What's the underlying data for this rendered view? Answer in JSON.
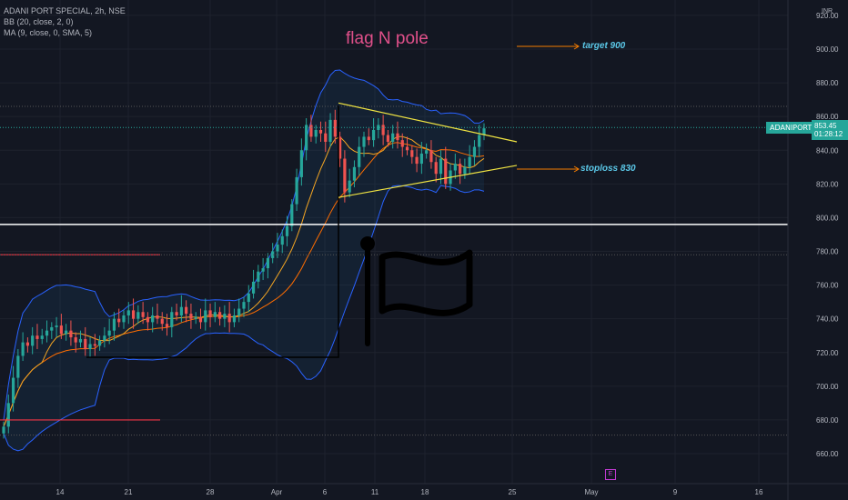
{
  "legend": {
    "symbol": "ADANI PORT SPECIAL, 2h, NSE",
    "bb": "BB (20, close, 2, 0)",
    "ma": "MA (9, close, 0, SMA, 5)"
  },
  "currency": "INR",
  "ticker_badge": "ADANIPORTS",
  "price_badge": {
    "price": "853.45",
    "countdown": "01:28:12"
  },
  "annotations": {
    "title": "flag N pole",
    "target": "target 900",
    "stoploss": "stoploss 830"
  },
  "earnings_badge": "E",
  "colors": {
    "background": "#131722",
    "up": "#26a69a",
    "down": "#ef5350",
    "bb_band": "#2962ff",
    "ma": "#f5a623",
    "trendline": "#f0e442",
    "support": "#ffffff",
    "levels": "#f23645",
    "arrow": "#f57c00"
  },
  "chart_data": {
    "type": "candlestick",
    "y_axis_labels": [
      "920.00",
      "900.00",
      "880.00",
      "860.00",
      "840.00",
      "820.00",
      "800.00",
      "780.00",
      "760.00",
      "740.00",
      "720.00",
      "700.00",
      "680.00",
      "660.00"
    ],
    "ylim": [
      650,
      925
    ],
    "x_axis_labels": [
      "14",
      "21",
      "28",
      "Apr",
      "6",
      "11",
      "18",
      "25",
      "May",
      "9",
      "16"
    ],
    "horizontal_levels": [
      {
        "value": 796,
        "color": "#ffffff",
        "label": ""
      },
      {
        "value": 778,
        "color": "#f23645",
        "label": ""
      },
      {
        "value": 680,
        "color": "#f23645",
        "label": ""
      }
    ],
    "trendlines": [
      {
        "from": [
          0.0,
          868
        ],
        "to": [
          1.0,
          845
        ],
        "segment": "upper"
      },
      {
        "from": [
          0.0,
          812
        ],
        "to": [
          1.0,
          831
        ],
        "segment": "lower"
      }
    ],
    "target_value": 900,
    "stoploss_value": 830,
    "last_price": 853.45,
    "closes": [
      676,
      690,
      705,
      718,
      726,
      724,
      730,
      728,
      730,
      733,
      735,
      736,
      731,
      733,
      729,
      726,
      728,
      722,
      725,
      724,
      727,
      730,
      733,
      740,
      738,
      742,
      745,
      740,
      744,
      741,
      738,
      742,
      740,
      737,
      735,
      744,
      742,
      747,
      743,
      740,
      741,
      738,
      745,
      741,
      744,
      740,
      743,
      738,
      742,
      746,
      750,
      755,
      762,
      768,
      770,
      776,
      780,
      784,
      789,
      795,
      808,
      824,
      840,
      855,
      848,
      852,
      850,
      845,
      858,
      848,
      835,
      815,
      822,
      830,
      842,
      848,
      846,
      852,
      855,
      849,
      845,
      850,
      846,
      842,
      840,
      836,
      832,
      838,
      840,
      833,
      826,
      835,
      820,
      828,
      832,
      826,
      830,
      836,
      842,
      849,
      853
    ]
  }
}
